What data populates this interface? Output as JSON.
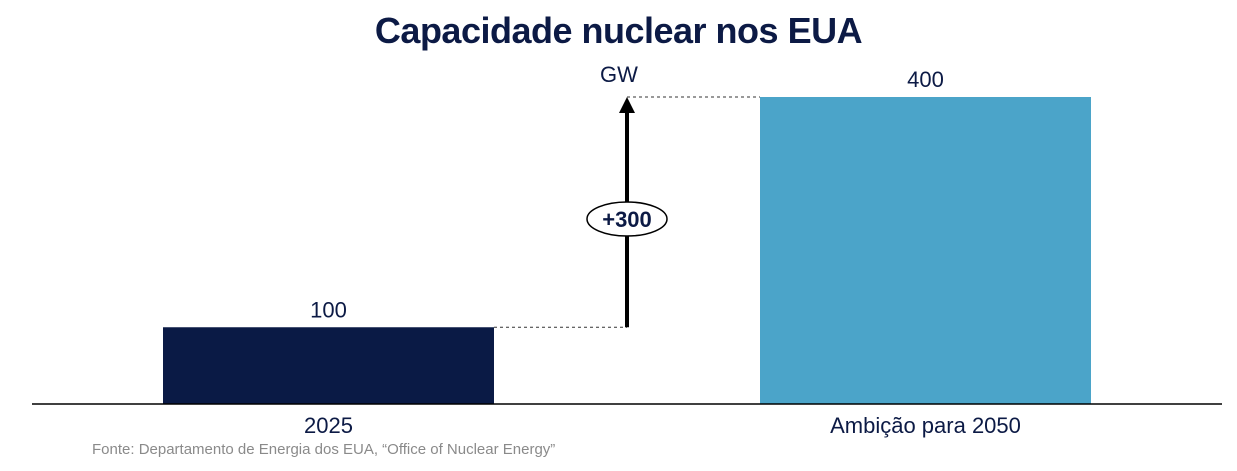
{
  "chart_data": {
    "type": "bar",
    "title": "Capacidade nuclear nos EUA",
    "unit_label": "GW",
    "categories": [
      "2025",
      "Ambição para 2050"
    ],
    "values": [
      100,
      400
    ],
    "colors": [
      "#0a1a45",
      "#4ba4c9"
    ],
    "ylim": [
      0,
      400
    ],
    "annotation": {
      "label": "+300",
      "from_value": 100,
      "to_value": 400
    },
    "grid": false,
    "legend": "none",
    "source": "Fonte: Departamento de Energia dos EUA, “Office of Nuclear Energy”"
  }
}
